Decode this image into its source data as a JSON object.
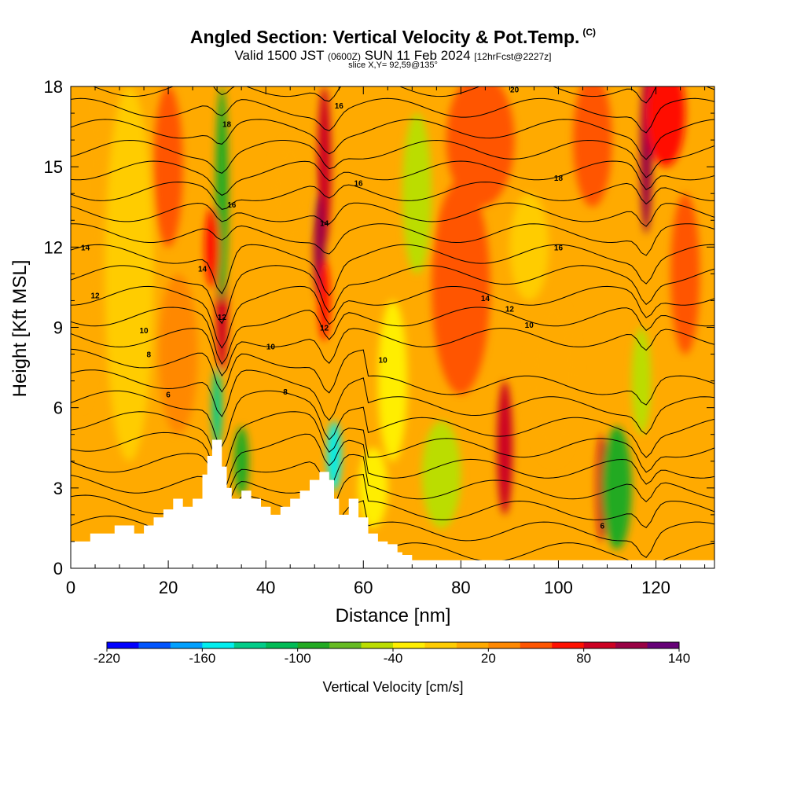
{
  "title": "Angled Section: Vertical Velocity & Pot.Temp.",
  "title_unit": "(C)",
  "subtitle_valid": "Valid 1500 JST",
  "subtitle_z": "(0600Z)",
  "subtitle_date": "SUN 11 Feb 2024",
  "subtitle_fcst": "[12hrFcst@2227z]",
  "slice_label": "slice X,Y= 92,59@135°",
  "colors": {
    "velocity_scale": [
      "#0000ff",
      "#0055ff",
      "#00a0ff",
      "#00eeee",
      "#00cc88",
      "#00bb55",
      "#22aa22",
      "#66bb22",
      "#bbdd00",
      "#ffee00",
      "#ffcc00",
      "#ffaa00",
      "#ff8800",
      "#ff5500",
      "#ff1100",
      "#cc0022",
      "#990044",
      "#660077"
    ],
    "terrain": "#ffffff",
    "contour": "#000000"
  },
  "chart_data": {
    "type": "heatmap",
    "xlabel": "Distance [nm]",
    "ylabel": "Height [Kft MSL]",
    "xlim": [
      0,
      132
    ],
    "ylim": [
      0,
      18
    ],
    "xticks": [
      0,
      20,
      40,
      60,
      80,
      100,
      120
    ],
    "yticks": [
      0,
      3,
      6,
      9,
      12,
      15,
      18
    ],
    "colorbar": {
      "label": "Vertical Velocity [cm/s]",
      "min": -220,
      "max": 140,
      "step": 20,
      "tick_labels": [
        "-220",
        "-160",
        "-100",
        "-40",
        "20",
        "80",
        "140"
      ]
    },
    "terrain_profile": {
      "x": [
        0,
        4,
        9,
        13,
        15,
        17,
        19,
        21,
        23,
        25,
        27,
        28,
        29,
        30,
        31,
        32,
        33,
        35,
        37,
        39,
        41,
        43,
        45,
        47,
        49,
        51,
        53,
        54,
        55,
        57,
        59,
        61,
        63,
        65,
        67,
        68,
        70,
        72,
        132
      ],
      "height": [
        1.0,
        1.3,
        1.6,
        1.3,
        1.6,
        1.9,
        2.2,
        2.6,
        2.3,
        2.6,
        3.5,
        4.2,
        4.8,
        4.8,
        3.8,
        3.0,
        2.6,
        2.9,
        2.6,
        2.3,
        2.0,
        2.3,
        2.6,
        2.9,
        3.3,
        3.6,
        3.3,
        2.6,
        2.0,
        2.6,
        1.9,
        1.3,
        1.0,
        0.9,
        0.6,
        0.5,
        0.3,
        0.3,
        0.3
      ]
    },
    "contour_labels": [
      {
        "text": "20",
        "x": 91,
        "y": 17.9
      },
      {
        "text": "18",
        "x": 32,
        "y": 16.6
      },
      {
        "text": "16",
        "x": 55,
        "y": 17.3
      },
      {
        "text": "16",
        "x": 33,
        "y": 13.6
      },
      {
        "text": "16",
        "x": 59,
        "y": 14.4
      },
      {
        "text": "18",
        "x": 100,
        "y": 14.6
      },
      {
        "text": "16",
        "x": 100,
        "y": 12.0
      },
      {
        "text": "14",
        "x": 3,
        "y": 12.0
      },
      {
        "text": "14",
        "x": 27,
        "y": 11.2
      },
      {
        "text": "14",
        "x": 52,
        "y": 12.9
      },
      {
        "text": "14",
        "x": 85,
        "y": 10.1
      },
      {
        "text": "12",
        "x": 5,
        "y": 10.2
      },
      {
        "text": "12",
        "x": 31,
        "y": 9.4
      },
      {
        "text": "12",
        "x": 52,
        "y": 9.0
      },
      {
        "text": "12",
        "x": 90,
        "y": 9.7
      },
      {
        "text": "10",
        "x": 15,
        "y": 8.9
      },
      {
        "text": "10",
        "x": 41,
        "y": 8.3
      },
      {
        "text": "10",
        "x": 64,
        "y": 7.8
      },
      {
        "text": "10",
        "x": 94,
        "y": 9.1
      },
      {
        "text": "8",
        "x": 16,
        "y": 8.0
      },
      {
        "text": "8",
        "x": 44,
        "y": 6.6
      },
      {
        "text": "6",
        "x": 20,
        "y": 6.5
      },
      {
        "text": "6",
        "x": 109,
        "y": 1.6
      }
    ]
  }
}
